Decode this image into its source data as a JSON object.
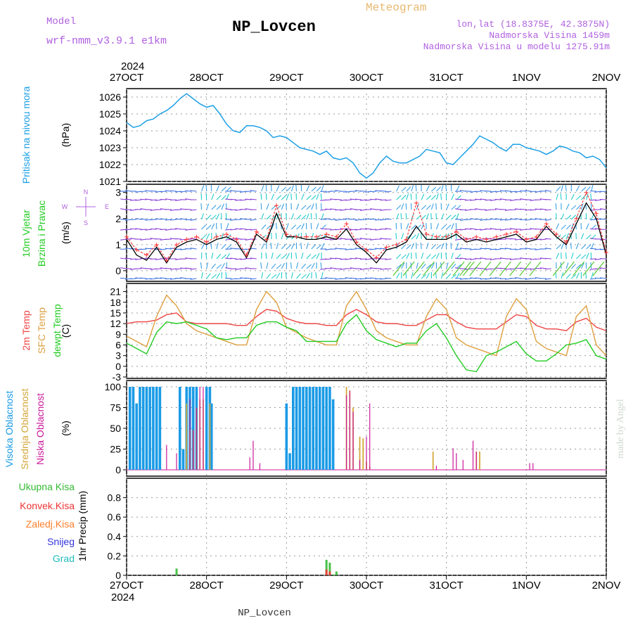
{
  "header": {
    "model_label": "Model",
    "model_name": "wrf-nmm_v3.9.1  e1km",
    "title": "NP_Lovcen",
    "meteogram": "Meteogram",
    "lonlat": "lon,lat (18.8375E, 42.3875N)",
    "elevation": "Nadmorska Visina 1459m",
    "model_elevation": "Nadmorska Visina u modelu 1275.91m",
    "footer_title": "NP_Lovcen",
    "credit": "made by Angel"
  },
  "colors": {
    "pressure": "#1ea0e6",
    "wind_speed": "#000000",
    "wind_gust": "#ff3b3b",
    "temp2m": "#ee4444",
    "sfc_temp": "#dda040",
    "dewpoint": "#22cc22",
    "high_cloud": "#1a9be6",
    "mid_cloud": "#d4a73a",
    "low_cloud": "#cc1a9a",
    "precip_total": "#33bb33",
    "precip_conv": "#ee3333",
    "precip_frozen": "#ff7f2a",
    "snow": "#3333dd",
    "grad": "#22bbbb",
    "label_model": "#b060e0"
  },
  "x_axis": {
    "year_label": "2024",
    "ticks": [
      "27OCT",
      "28OCT",
      "29OCT",
      "30OCT",
      "31OCT",
      "1NOV",
      "2NOV"
    ],
    "hours_range": [
      0,
      144
    ]
  },
  "chart_data": [
    {
      "type": "line",
      "panel": "pressure",
      "ylabel_lines": [
        "Pritisak na nivou mora"
      ],
      "unit": "(hPa)",
      "ylim": [
        1021,
        1026.5
      ],
      "yticks": [
        1021,
        1022,
        1023,
        1024,
        1025,
        1026
      ],
      "x_hours": [
        0,
        2,
        4,
        6,
        8,
        10,
        12,
        14,
        16,
        18,
        20,
        22,
        24,
        26,
        28,
        30,
        32,
        34,
        36,
        38,
        40,
        42,
        44,
        46,
        48,
        50,
        52,
        54,
        56,
        58,
        60,
        62,
        64,
        66,
        68,
        70,
        72,
        74,
        76,
        78,
        80,
        82,
        84,
        86,
        88,
        90,
        92,
        94,
        96,
        98,
        100,
        102,
        104,
        106,
        108,
        110,
        112,
        114,
        116,
        118,
        120,
        122,
        124,
        126,
        128,
        130,
        132,
        134,
        136,
        138,
        140,
        142,
        144
      ],
      "series": [
        {
          "values": [
            1024.5,
            1024.2,
            1024.3,
            1024.6,
            1024.7,
            1025.0,
            1025.2,
            1025.5,
            1025.9,
            1026.2,
            1025.9,
            1025.6,
            1025.4,
            1025.5,
            1025.0,
            1024.4,
            1024.0,
            1023.9,
            1024.3,
            1024.3,
            1024.2,
            1024.0,
            1023.6,
            1023.7,
            1023.6,
            1023.3,
            1023.0,
            1022.9,
            1022.8,
            1022.6,
            1022.8,
            1022.4,
            1022.3,
            1022.4,
            1022.1,
            1021.5,
            1021.2,
            1021.5,
            1022.1,
            1022.5,
            1022.2,
            1022.1,
            1022.1,
            1022.3,
            1022.5,
            1022.9,
            1022.8,
            1022.7,
            1022.1,
            1022.0,
            1022.4,
            1022.8,
            1023.2,
            1023.7,
            1023.5,
            1023.3,
            1023.0,
            1022.8,
            1023.2,
            1023.2,
            1023.0,
            1022.9,
            1022.8,
            1022.6,
            1022.8,
            1023.1,
            1023.0,
            1022.8,
            1022.7,
            1022.4,
            1022.5,
            1022.3,
            1021.8
          ]
        }
      ]
    },
    {
      "type": "line",
      "panel": "wind",
      "ylabel_lines": [
        "10m Vjetar",
        "Brzina i Pravac"
      ],
      "unit": "(m/s)",
      "compass": [
        "N",
        "W",
        "E",
        "S"
      ],
      "ylim": [
        -0.3,
        3.1
      ],
      "yticks": [
        0,
        1,
        2,
        3
      ],
      "x_hours": [
        0,
        3,
        6,
        9,
        12,
        15,
        18,
        21,
        24,
        27,
        30,
        33,
        36,
        39,
        42,
        45,
        48,
        51,
        54,
        57,
        60,
        63,
        66,
        69,
        72,
        75,
        78,
        81,
        84,
        87,
        90,
        93,
        96,
        99,
        102,
        105,
        108,
        111,
        114,
        117,
        120,
        123,
        126,
        129,
        132,
        135,
        138,
        141,
        144
      ],
      "series": [
        {
          "name": "speed",
          "values": [
            1.2,
            0.6,
            0.4,
            0.9,
            0.3,
            0.9,
            1.1,
            1.2,
            1.0,
            1.2,
            1.3,
            1.1,
            0.5,
            1.4,
            1.1,
            2.2,
            1.3,
            1.3,
            1.2,
            1.2,
            1.3,
            1.2,
            1.6,
            1.0,
            0.7,
            0.3,
            0.8,
            0.9,
            1.1,
            1.7,
            1.2,
            1.2,
            1.2,
            1.4,
            1.1,
            1.2,
            1.1,
            1.2,
            1.3,
            1.4,
            1.1,
            1.2,
            1.7,
            1.3,
            1.0,
            1.8,
            2.6,
            2.0,
            0.6
          ]
        },
        {
          "name": "gust",
          "values": [
            1.3,
            0.8,
            0.6,
            1.0,
            0.4,
            1.0,
            1.2,
            1.3,
            1.1,
            1.3,
            1.4,
            1.2,
            0.6,
            1.5,
            1.2,
            2.5,
            1.4,
            1.3,
            1.3,
            1.3,
            1.4,
            1.3,
            1.8,
            1.1,
            0.8,
            0.5,
            0.9,
            1.0,
            1.2,
            2.6,
            1.4,
            1.3,
            1.3,
            1.5,
            1.2,
            1.3,
            1.2,
            1.3,
            1.4,
            1.5,
            1.2,
            1.3,
            1.8,
            1.4,
            1.1,
            2.0,
            3.0,
            2.2,
            0.7
          ]
        }
      ]
    },
    {
      "type": "line",
      "panel": "temperature",
      "ylabel_lines": [
        "2m Temp",
        "SFC Temp",
        "dewpt Temp"
      ],
      "unit": "(C)",
      "ylim": [
        -3,
        22.5
      ],
      "yticks": [
        -3,
        0,
        3,
        6,
        9,
        12,
        15,
        18,
        21
      ],
      "x_hours": [
        0,
        3,
        6,
        9,
        12,
        15,
        18,
        21,
        24,
        27,
        30,
        33,
        36,
        39,
        42,
        45,
        48,
        51,
        54,
        57,
        60,
        63,
        66,
        69,
        72,
        75,
        78,
        81,
        84,
        87,
        90,
        93,
        96,
        99,
        102,
        105,
        108,
        111,
        114,
        117,
        120,
        123,
        126,
        129,
        132,
        135,
        138,
        141,
        144
      ],
      "series": [
        {
          "name": "2m",
          "values": [
            12.0,
            12.5,
            12.5,
            13.0,
            14.5,
            15.0,
            12.5,
            12.0,
            12.0,
            12.0,
            12.0,
            11.5,
            11.5,
            14.0,
            16.0,
            15.5,
            13.5,
            12.5,
            12.0,
            12.0,
            11.5,
            11.5,
            14.5,
            16.0,
            14.5,
            12.5,
            12.0,
            12.0,
            11.5,
            11.5,
            13.0,
            14.5,
            14.5,
            12.5,
            11.0,
            10.5,
            10.5,
            10.5,
            12.5,
            14.5,
            14.0,
            11.5,
            10.5,
            10.5,
            10.0,
            12.5,
            13.5,
            11.0,
            10.0
          ]
        },
        {
          "name": "sfc",
          "values": [
            8.5,
            7.0,
            5.5,
            14.0,
            20.0,
            17.0,
            12.0,
            10.0,
            9.0,
            8.0,
            7.0,
            6.0,
            6.0,
            16.0,
            21.0,
            18.0,
            11.0,
            9.5,
            8.0,
            7.0,
            6.0,
            6.0,
            17.0,
            21.0,
            16.0,
            10.0,
            8.0,
            7.0,
            6.0,
            6.0,
            14.0,
            19.0,
            16.0,
            8.0,
            6.0,
            5.0,
            4.0,
            3.0,
            14.0,
            19.0,
            16.0,
            7.0,
            5.0,
            4.0,
            3.0,
            14.0,
            17.0,
            6.0,
            3.0
          ]
        },
        {
          "name": "dewpt",
          "values": [
            6.5,
            5.0,
            3.5,
            9.5,
            12.5,
            12.0,
            12.5,
            11.5,
            10.5,
            8.0,
            7.5,
            8.0,
            8.0,
            11.5,
            12.5,
            12.5,
            11.0,
            10.0,
            7.0,
            7.0,
            7.0,
            7.0,
            12.0,
            14.5,
            10.0,
            7.5,
            6.5,
            5.5,
            6.5,
            6.5,
            10.0,
            12.0,
            8.0,
            3.0,
            -1.0,
            -1.5,
            3.0,
            4.0,
            5.5,
            7.0,
            3.5,
            1.5,
            1.5,
            3.5,
            6.0,
            6.5,
            7.5,
            3.0,
            2.0
          ]
        }
      ]
    },
    {
      "type": "bar",
      "panel": "cloud",
      "ylabel_lines": [
        "Visoka Oblacnost",
        "Srednja Oblacnost",
        "Niska Oblacnost"
      ],
      "unit": "(%)",
      "ylim": [
        0,
        100
      ],
      "yticks": [
        0,
        25,
        50,
        75,
        100
      ],
      "series": [
        {
          "name": "high",
          "x_hours": [
            1,
            2,
            3,
            4,
            5,
            6,
            7,
            8,
            9,
            10,
            16,
            17,
            18,
            19,
            20,
            21,
            24,
            25,
            25.5,
            48,
            49,
            50,
            51,
            52,
            53,
            54,
            55,
            56,
            57,
            58,
            59,
            60,
            61,
            62
          ],
          "values": [
            100,
            100,
            80,
            100,
            100,
            100,
            100,
            100,
            100,
            100,
            100,
            25,
            100,
            100,
            100,
            100,
            100,
            100,
            80,
            80,
            20,
            100,
            100,
            100,
            100,
            100,
            100,
            100,
            100,
            100,
            100,
            100,
            100,
            85
          ]
        },
        {
          "name": "mid",
          "x_hours": [
            18,
            19,
            20,
            21,
            22,
            23,
            25,
            66,
            67,
            68,
            70,
            71,
            72,
            73,
            92,
            105,
            106
          ],
          "values": [
            80,
            48,
            48,
            75,
            85,
            85,
            80,
            100,
            96,
            75,
            40,
            38,
            10,
            4,
            22,
            22,
            22
          ]
        },
        {
          "name": "low",
          "x_hours": [
            12,
            15,
            19,
            20,
            21,
            22,
            23,
            37,
            38,
            40,
            66,
            67,
            68,
            70,
            72,
            73,
            93,
            98,
            99,
            101,
            104,
            105,
            121,
            122
          ],
          "values": [
            30,
            20,
            85,
            48,
            75,
            100,
            100,
            15,
            35,
            8,
            90,
            95,
            70,
            12,
            40,
            80,
            5,
            26,
            20,
            12,
            35,
            22,
            8,
            8
          ]
        }
      ]
    },
    {
      "type": "bar",
      "panel": "precip",
      "ylabel_lines": [
        "Ukupna Kisa",
        "Konvek.Kisa",
        "Zaledj.Kisa",
        "Snijeg",
        "Grad"
      ],
      "ylabel_right": "1hr Precip (mm)",
      "ylim": [
        0,
        1.0
      ],
      "yticks": [
        0,
        0.2,
        0.4,
        0.6,
        0.8
      ],
      "series": [
        {
          "name": "total",
          "x_hours": [
            15,
            60,
            61,
            62,
            63
          ],
          "values": [
            0.07,
            0.16,
            0.13,
            0.01,
            0.04
          ]
        },
        {
          "name": "convective",
          "x_hours": [
            60,
            61
          ],
          "values": [
            0.06,
            0.04
          ]
        }
      ]
    }
  ]
}
